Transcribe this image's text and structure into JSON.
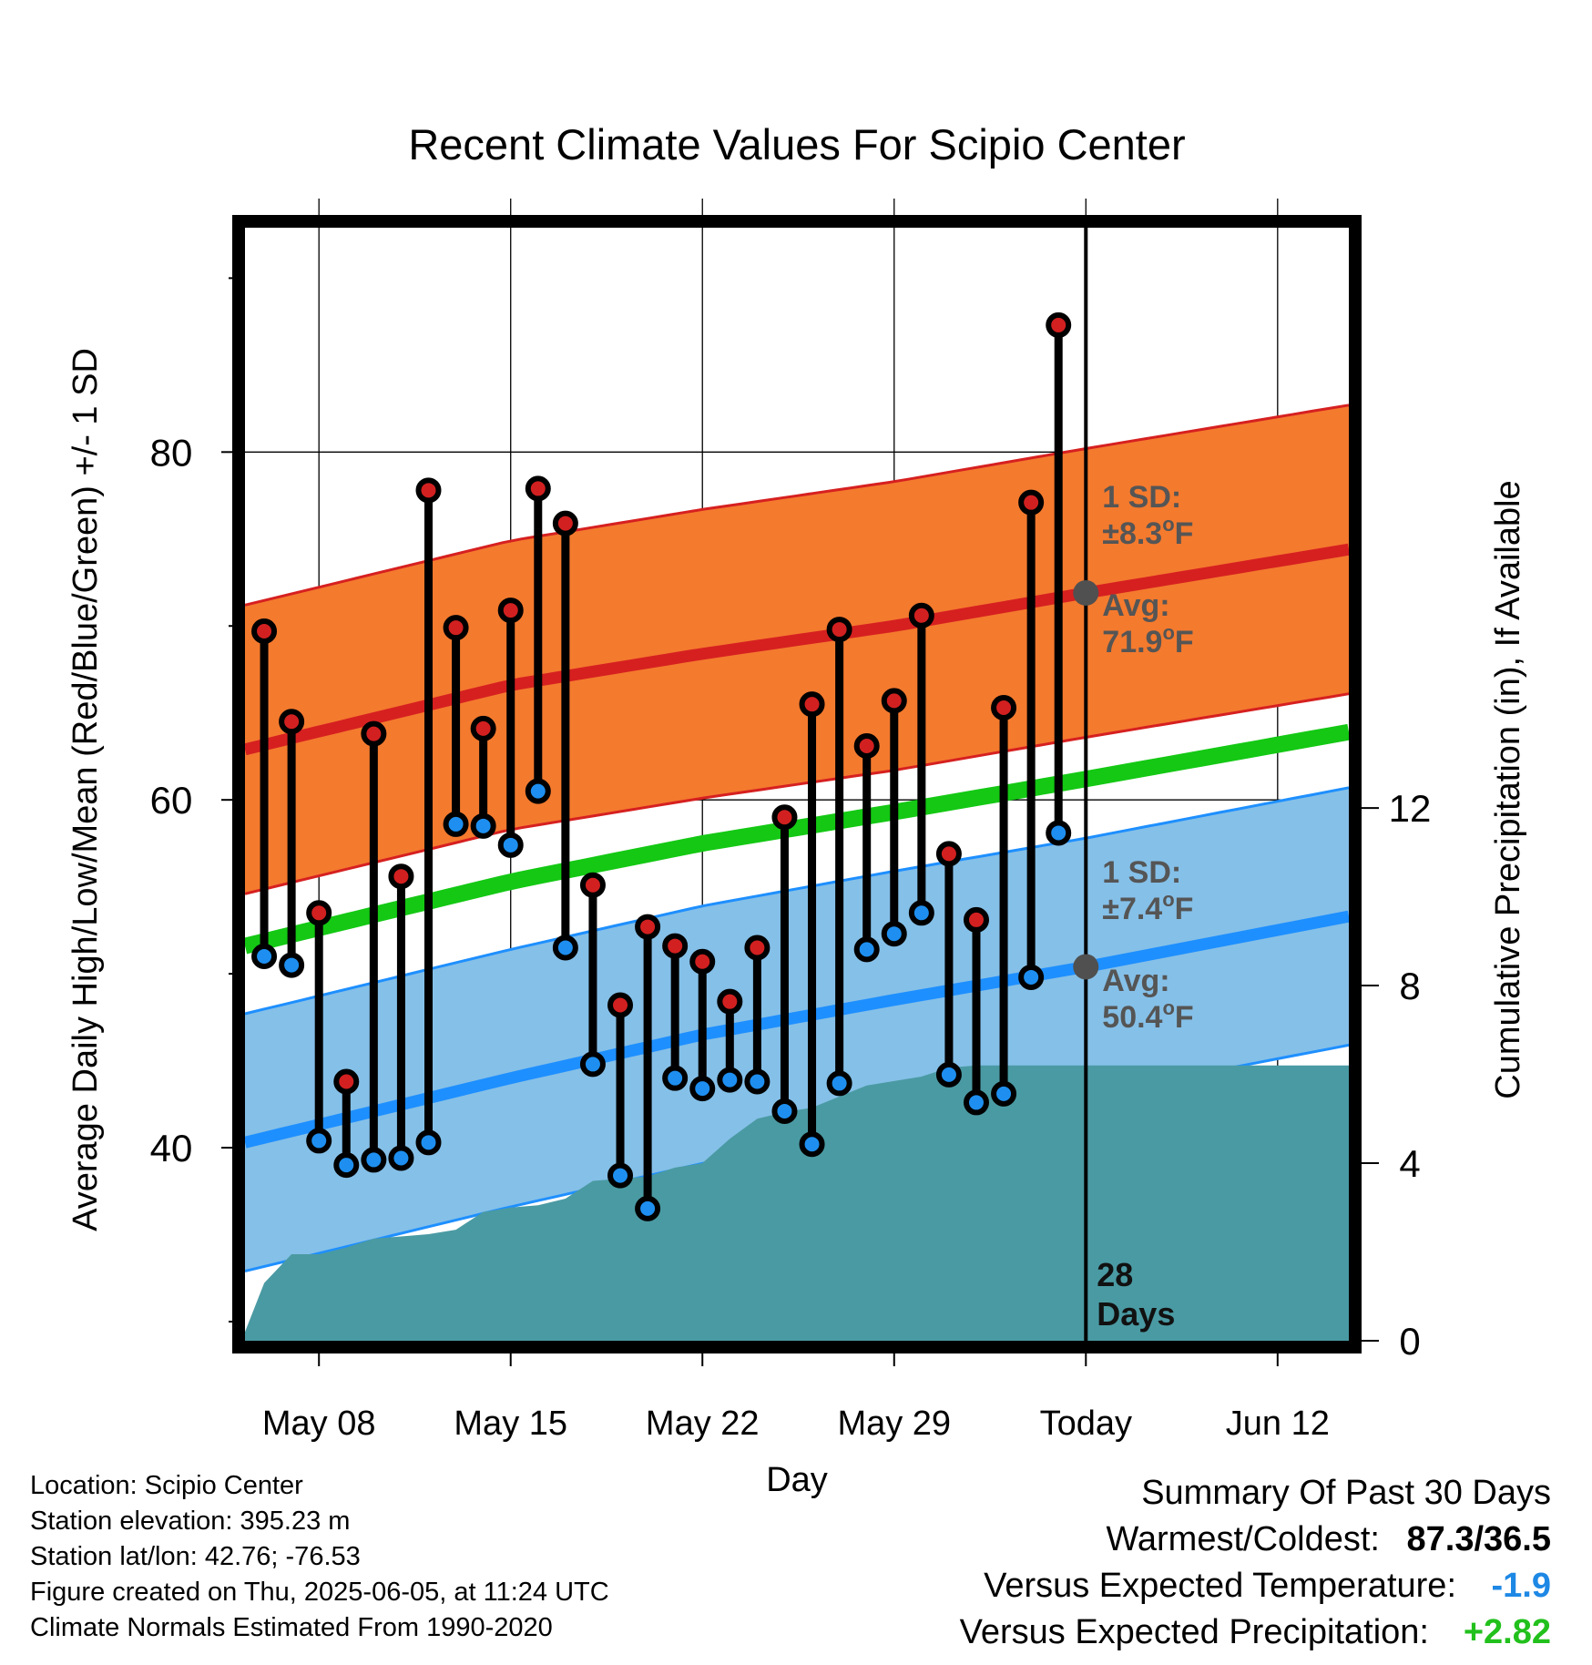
{
  "chart_data": {
    "type": "line",
    "title": "Recent Climate Values For Scipio Center",
    "xlabel": "Day",
    "ylabel_left": "Average Daily High/Low/Mean (Red/Blue/Green) +/- 1 SD",
    "ylabel_right": "Cumulative Precipitation (in), If Available",
    "x_tick_labels": [
      "May 08",
      "May 15",
      "May 22",
      "May 29",
      "Today",
      "Jun 12"
    ],
    "x_tick_days": [
      0,
      7,
      14,
      21,
      28,
      35
    ],
    "x_range_days": [
      -2.7,
      37.6
    ],
    "y_left_ticks": [
      40,
      60,
      80
    ],
    "y_left_range": [
      28.9,
      92.9
    ],
    "y_right_ticks": [
      0,
      4,
      8,
      12
    ],
    "y_right_range": [
      0,
      25.07
    ],
    "grid": true,
    "days": [
      -2,
      -1,
      0,
      1,
      2,
      3,
      4,
      5,
      6,
      7,
      8,
      9,
      10,
      11,
      12,
      13,
      14,
      15,
      16,
      17,
      18,
      19,
      20,
      21,
      22,
      23,
      24,
      25,
      26,
      27
    ],
    "highs": [
      69.7,
      64.5,
      53.5,
      43.8,
      63.8,
      55.6,
      77.8,
      69.9,
      64.1,
      70.9,
      77.9,
      75.9,
      55.1,
      48.2,
      52.7,
      51.6,
      50.7,
      48.4,
      51.5,
      59.0,
      65.5,
      69.8,
      63.1,
      65.7,
      70.6,
      56.9,
      53.1,
      65.3,
      77.1,
      87.3
    ],
    "lows": [
      51.0,
      50.5,
      40.4,
      39.0,
      39.3,
      39.4,
      40.3,
      58.6,
      58.5,
      57.4,
      60.5,
      51.5,
      44.8,
      38.4,
      36.5,
      44.0,
      43.4,
      43.9,
      43.8,
      42.1,
      40.2,
      43.7,
      51.4,
      52.3,
      53.5,
      44.2,
      42.6,
      43.1,
      49.8,
      58.1
    ],
    "normals": {
      "high_avg": {
        "x": [
          -2.7,
          7,
          14,
          21,
          28,
          37.6
        ],
        "values": [
          62.9,
          66.6,
          68.4,
          70.0,
          71.9,
          74.4
        ]
      },
      "high_sd": 8.3,
      "low_avg": {
        "x": [
          -2.7,
          7,
          14,
          21,
          28,
          37.6
        ],
        "values": [
          40.3,
          44.0,
          46.5,
          48.5,
          50.4,
          53.3
        ]
      },
      "low_sd": 7.4,
      "mean": {
        "x": [
          -2.7,
          7,
          14,
          21,
          28,
          37.6
        ],
        "values": [
          51.6,
          55.3,
          57.5,
          59.3,
          61.2,
          63.9
        ]
      }
    },
    "precip_cumulative": {
      "x": [
        -2.7,
        -2,
        -1,
        0,
        1,
        2,
        3,
        4,
        5,
        6,
        7,
        8,
        9,
        10,
        11,
        12,
        13,
        14,
        15,
        16,
        17,
        18,
        19,
        20,
        21,
        22,
        23,
        24,
        25,
        37.6
      ],
      "values": [
        0.2,
        1.3,
        1.95,
        1.95,
        2.1,
        2.3,
        2.35,
        2.4,
        2.5,
        2.9,
        3.0,
        3.05,
        3.2,
        3.6,
        3.65,
        3.7,
        3.9,
        4.0,
        4.55,
        5.0,
        5.15,
        5.25,
        5.5,
        5.75,
        5.85,
        5.95,
        6.15,
        6.2,
        6.2,
        6.2
      ]
    },
    "annotations": {
      "high_sd_text": [
        "1 SD:",
        "±8.3",
        "o",
        "F"
      ],
      "high_avg_text": [
        "Avg:",
        "71.9",
        "o",
        "F"
      ],
      "low_sd_text": [
        "1 SD:",
        "±7.4",
        "o",
        "F"
      ],
      "low_avg_text": [
        "Avg:",
        "50.4",
        "o",
        "F"
      ],
      "period_text": [
        "28",
        "Days"
      ]
    },
    "colors": {
      "high_band": "#f47a2e",
      "high_line": "#d62020",
      "low_band": "#85c0e8",
      "low_line": "#1e8fff",
      "mean_line": "#14c814",
      "precip": "#4a9aa3",
      "high_marker": "#d22020",
      "low_marker": "#1e8ff0",
      "annotation": "#555555"
    }
  },
  "info": {
    "location": "Location: Scipio Center",
    "elevation": "Station elevation: 395.23 m",
    "latlon": "Station lat/lon: 42.76; -76.53",
    "created": "Figure created on Thu, 2025-06-05, at 11:24 UTC",
    "normals": "Climate Normals Estimated From 1990-2020"
  },
  "summary": {
    "heading": "Summary Of Past 30 Days",
    "warmest_label": "Warmest/Coldest:",
    "warmest_value": "87.3/36.5",
    "temp_label": "Versus Expected Temperature:",
    "temp_value": "-1.9",
    "precip_label": "Versus Expected Precipitation:",
    "precip_value": "+2.82"
  }
}
